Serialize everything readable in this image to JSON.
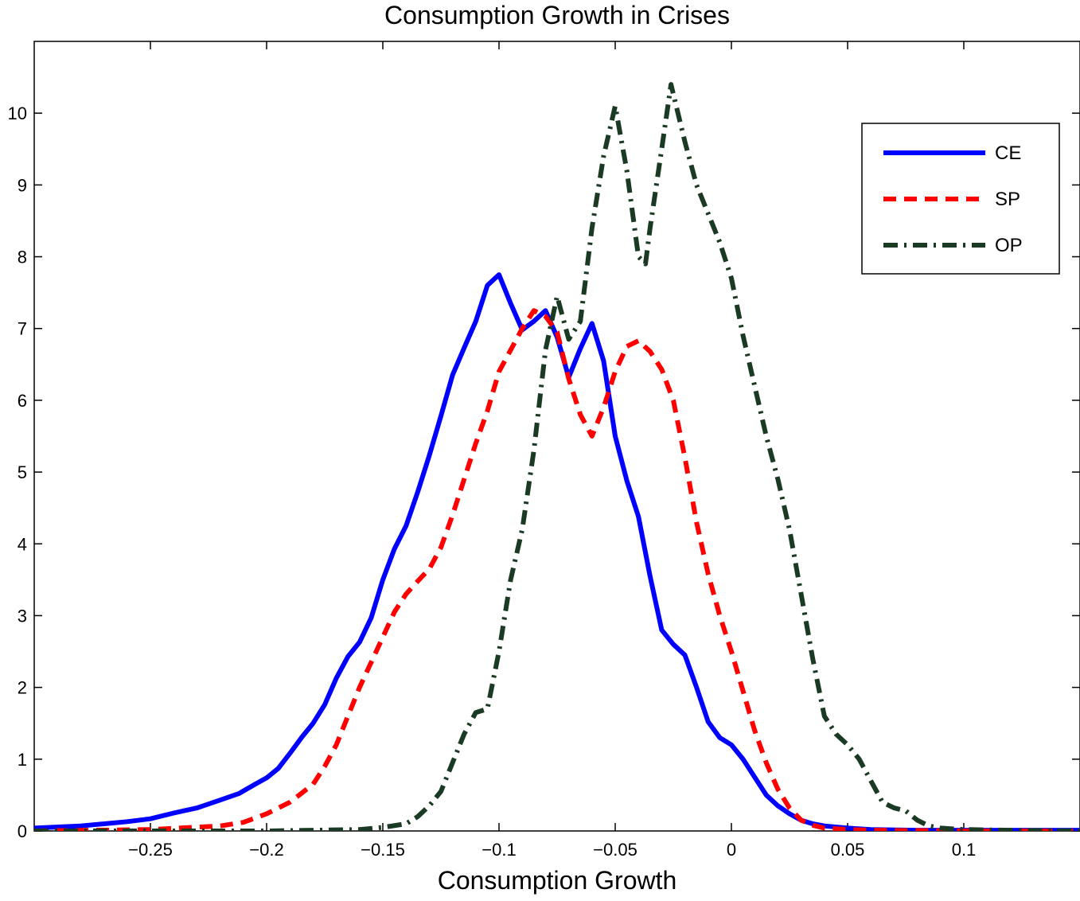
{
  "chart_data": {
    "type": "line",
    "title": "Consumption Growth in Crises",
    "xlabel": "Consumption Growth",
    "ylabel": "",
    "xlim": [
      -0.3,
      0.15
    ],
    "ylim": [
      0,
      11
    ],
    "xticks": [
      -0.25,
      -0.2,
      -0.15,
      -0.1,
      -0.05,
      0,
      0.05,
      0.1
    ],
    "xtick_labels": [
      "−0.25",
      "−0.2",
      "−0.15",
      "−0.1",
      "−0.05",
      "0",
      "0.05",
      "0.1"
    ],
    "yticks": [
      0,
      1,
      2,
      3,
      4,
      5,
      6,
      7,
      8,
      9,
      10
    ],
    "ytick_labels": [
      "0",
      "1",
      "2",
      "3",
      "4",
      "5",
      "6",
      "7",
      "8",
      "9",
      "10"
    ],
    "grid": false,
    "legend_position": "top-right",
    "series": [
      {
        "name": "CE",
        "style": "solid",
        "color": "#0000ff",
        "points": [
          [
            -0.3,
            0.04
          ],
          [
            -0.28,
            0.07
          ],
          [
            -0.26,
            0.13
          ],
          [
            -0.25,
            0.17
          ],
          [
            -0.24,
            0.25
          ],
          [
            -0.23,
            0.32
          ],
          [
            -0.22,
            0.43
          ],
          [
            -0.212,
            0.52
          ],
          [
            -0.205,
            0.65
          ],
          [
            -0.2,
            0.74
          ],
          [
            -0.195,
            0.87
          ],
          [
            -0.19,
            1.08
          ],
          [
            -0.185,
            1.3
          ],
          [
            -0.18,
            1.5
          ],
          [
            -0.175,
            1.76
          ],
          [
            -0.17,
            2.13
          ],
          [
            -0.165,
            2.43
          ],
          [
            -0.16,
            2.63
          ],
          [
            -0.155,
            2.97
          ],
          [
            -0.15,
            3.5
          ],
          [
            -0.145,
            3.93
          ],
          [
            -0.14,
            4.25
          ],
          [
            -0.135,
            4.72
          ],
          [
            -0.13,
            5.23
          ],
          [
            -0.125,
            5.78
          ],
          [
            -0.12,
            6.35
          ],
          [
            -0.115,
            6.73
          ],
          [
            -0.11,
            7.1
          ],
          [
            -0.105,
            7.6
          ],
          [
            -0.1,
            7.75
          ],
          [
            -0.095,
            7.35
          ],
          [
            -0.09,
            6.98
          ],
          [
            -0.085,
            7.1
          ],
          [
            -0.08,
            7.25
          ],
          [
            -0.075,
            6.88
          ],
          [
            -0.07,
            6.32
          ],
          [
            -0.065,
            6.72
          ],
          [
            -0.06,
            7.07
          ],
          [
            -0.055,
            6.55
          ],
          [
            -0.05,
            5.5
          ],
          [
            -0.045,
            4.88
          ],
          [
            -0.04,
            4.38
          ],
          [
            -0.035,
            3.55
          ],
          [
            -0.03,
            2.8
          ],
          [
            -0.025,
            2.6
          ],
          [
            -0.02,
            2.45
          ],
          [
            -0.015,
            2.0
          ],
          [
            -0.01,
            1.52
          ],
          [
            -0.005,
            1.3
          ],
          [
            0.0,
            1.2
          ],
          [
            0.005,
            1.0
          ],
          [
            0.01,
            0.75
          ],
          [
            0.015,
            0.5
          ],
          [
            0.02,
            0.35
          ],
          [
            0.025,
            0.24
          ],
          [
            0.03,
            0.15
          ],
          [
            0.035,
            0.1
          ],
          [
            0.04,
            0.07
          ],
          [
            0.05,
            0.04
          ],
          [
            0.06,
            0.02
          ],
          [
            0.08,
            0.01
          ],
          [
            0.15,
            0.01
          ]
        ]
      },
      {
        "name": "SP",
        "style": "dashed",
        "color": "#ff0000",
        "points": [
          [
            -0.3,
            0.0
          ],
          [
            -0.25,
            0.02
          ],
          [
            -0.22,
            0.07
          ],
          [
            -0.21,
            0.12
          ],
          [
            -0.2,
            0.24
          ],
          [
            -0.19,
            0.4
          ],
          [
            -0.18,
            0.65
          ],
          [
            -0.175,
            0.9
          ],
          [
            -0.17,
            1.2
          ],
          [
            -0.165,
            1.6
          ],
          [
            -0.16,
            2.0
          ],
          [
            -0.155,
            2.35
          ],
          [
            -0.15,
            2.7
          ],
          [
            -0.145,
            3.05
          ],
          [
            -0.14,
            3.3
          ],
          [
            -0.135,
            3.48
          ],
          [
            -0.13,
            3.65
          ],
          [
            -0.125,
            3.95
          ],
          [
            -0.12,
            4.4
          ],
          [
            -0.115,
            4.9
          ],
          [
            -0.11,
            5.4
          ],
          [
            -0.105,
            5.85
          ],
          [
            -0.1,
            6.4
          ],
          [
            -0.095,
            6.7
          ],
          [
            -0.09,
            7.0
          ],
          [
            -0.085,
            7.25
          ],
          [
            -0.08,
            7.17
          ],
          [
            -0.075,
            6.95
          ],
          [
            -0.07,
            6.3
          ],
          [
            -0.065,
            5.8
          ],
          [
            -0.06,
            5.5
          ],
          [
            -0.055,
            5.9
          ],
          [
            -0.05,
            6.4
          ],
          [
            -0.045,
            6.75
          ],
          [
            -0.04,
            6.83
          ],
          [
            -0.035,
            6.68
          ],
          [
            -0.03,
            6.43
          ],
          [
            -0.025,
            6.0
          ],
          [
            -0.02,
            5.2
          ],
          [
            -0.015,
            4.3
          ],
          [
            -0.01,
            3.58
          ],
          [
            -0.005,
            3.0
          ],
          [
            0.0,
            2.5
          ],
          [
            0.005,
            1.95
          ],
          [
            0.01,
            1.4
          ],
          [
            0.015,
            0.95
          ],
          [
            0.02,
            0.58
          ],
          [
            0.025,
            0.32
          ],
          [
            0.03,
            0.15
          ],
          [
            0.035,
            0.08
          ],
          [
            0.04,
            0.04
          ],
          [
            0.05,
            0.02
          ],
          [
            0.06,
            0.01
          ],
          [
            0.1,
            0.0
          ],
          [
            0.15,
            0.0
          ]
        ]
      },
      {
        "name": "OP",
        "style": "dash-dot",
        "color": "#1a3a24",
        "points": [
          [
            -0.3,
            0.0
          ],
          [
            -0.2,
            0.0
          ],
          [
            -0.16,
            0.02
          ],
          [
            -0.15,
            0.05
          ],
          [
            -0.14,
            0.1
          ],
          [
            -0.135,
            0.2
          ],
          [
            -0.13,
            0.35
          ],
          [
            -0.125,
            0.55
          ],
          [
            -0.12,
            0.95
          ],
          [
            -0.115,
            1.35
          ],
          [
            -0.11,
            1.65
          ],
          [
            -0.105,
            1.7
          ],
          [
            -0.1,
            2.5
          ],
          [
            -0.095,
            3.5
          ],
          [
            -0.09,
            4.2
          ],
          [
            -0.085,
            5.3
          ],
          [
            -0.08,
            6.7
          ],
          [
            -0.075,
            7.45
          ],
          [
            -0.07,
            6.85
          ],
          [
            -0.065,
            7.1
          ],
          [
            -0.06,
            8.4
          ],
          [
            -0.055,
            9.4
          ],
          [
            -0.05,
            10.1
          ],
          [
            -0.045,
            9.2
          ],
          [
            -0.04,
            8.0
          ],
          [
            -0.037,
            7.9
          ],
          [
            -0.035,
            8.4
          ],
          [
            -0.03,
            9.5
          ],
          [
            -0.026,
            10.4
          ],
          [
            -0.02,
            9.6
          ],
          [
            -0.015,
            9.0
          ],
          [
            -0.01,
            8.6
          ],
          [
            -0.005,
            8.2
          ],
          [
            0.0,
            7.7
          ],
          [
            0.005,
            6.9
          ],
          [
            0.01,
            6.2
          ],
          [
            0.015,
            5.5
          ],
          [
            0.02,
            4.9
          ],
          [
            0.025,
            4.2
          ],
          [
            0.03,
            3.3
          ],
          [
            0.035,
            2.4
          ],
          [
            0.04,
            1.6
          ],
          [
            0.045,
            1.35
          ],
          [
            0.05,
            1.2
          ],
          [
            0.055,
            1.0
          ],
          [
            0.06,
            0.7
          ],
          [
            0.065,
            0.4
          ],
          [
            0.07,
            0.32
          ],
          [
            0.075,
            0.28
          ],
          [
            0.08,
            0.15
          ],
          [
            0.085,
            0.07
          ],
          [
            0.09,
            0.04
          ],
          [
            0.1,
            0.02
          ],
          [
            0.12,
            0.01
          ],
          [
            0.15,
            0.0
          ]
        ]
      }
    ]
  }
}
